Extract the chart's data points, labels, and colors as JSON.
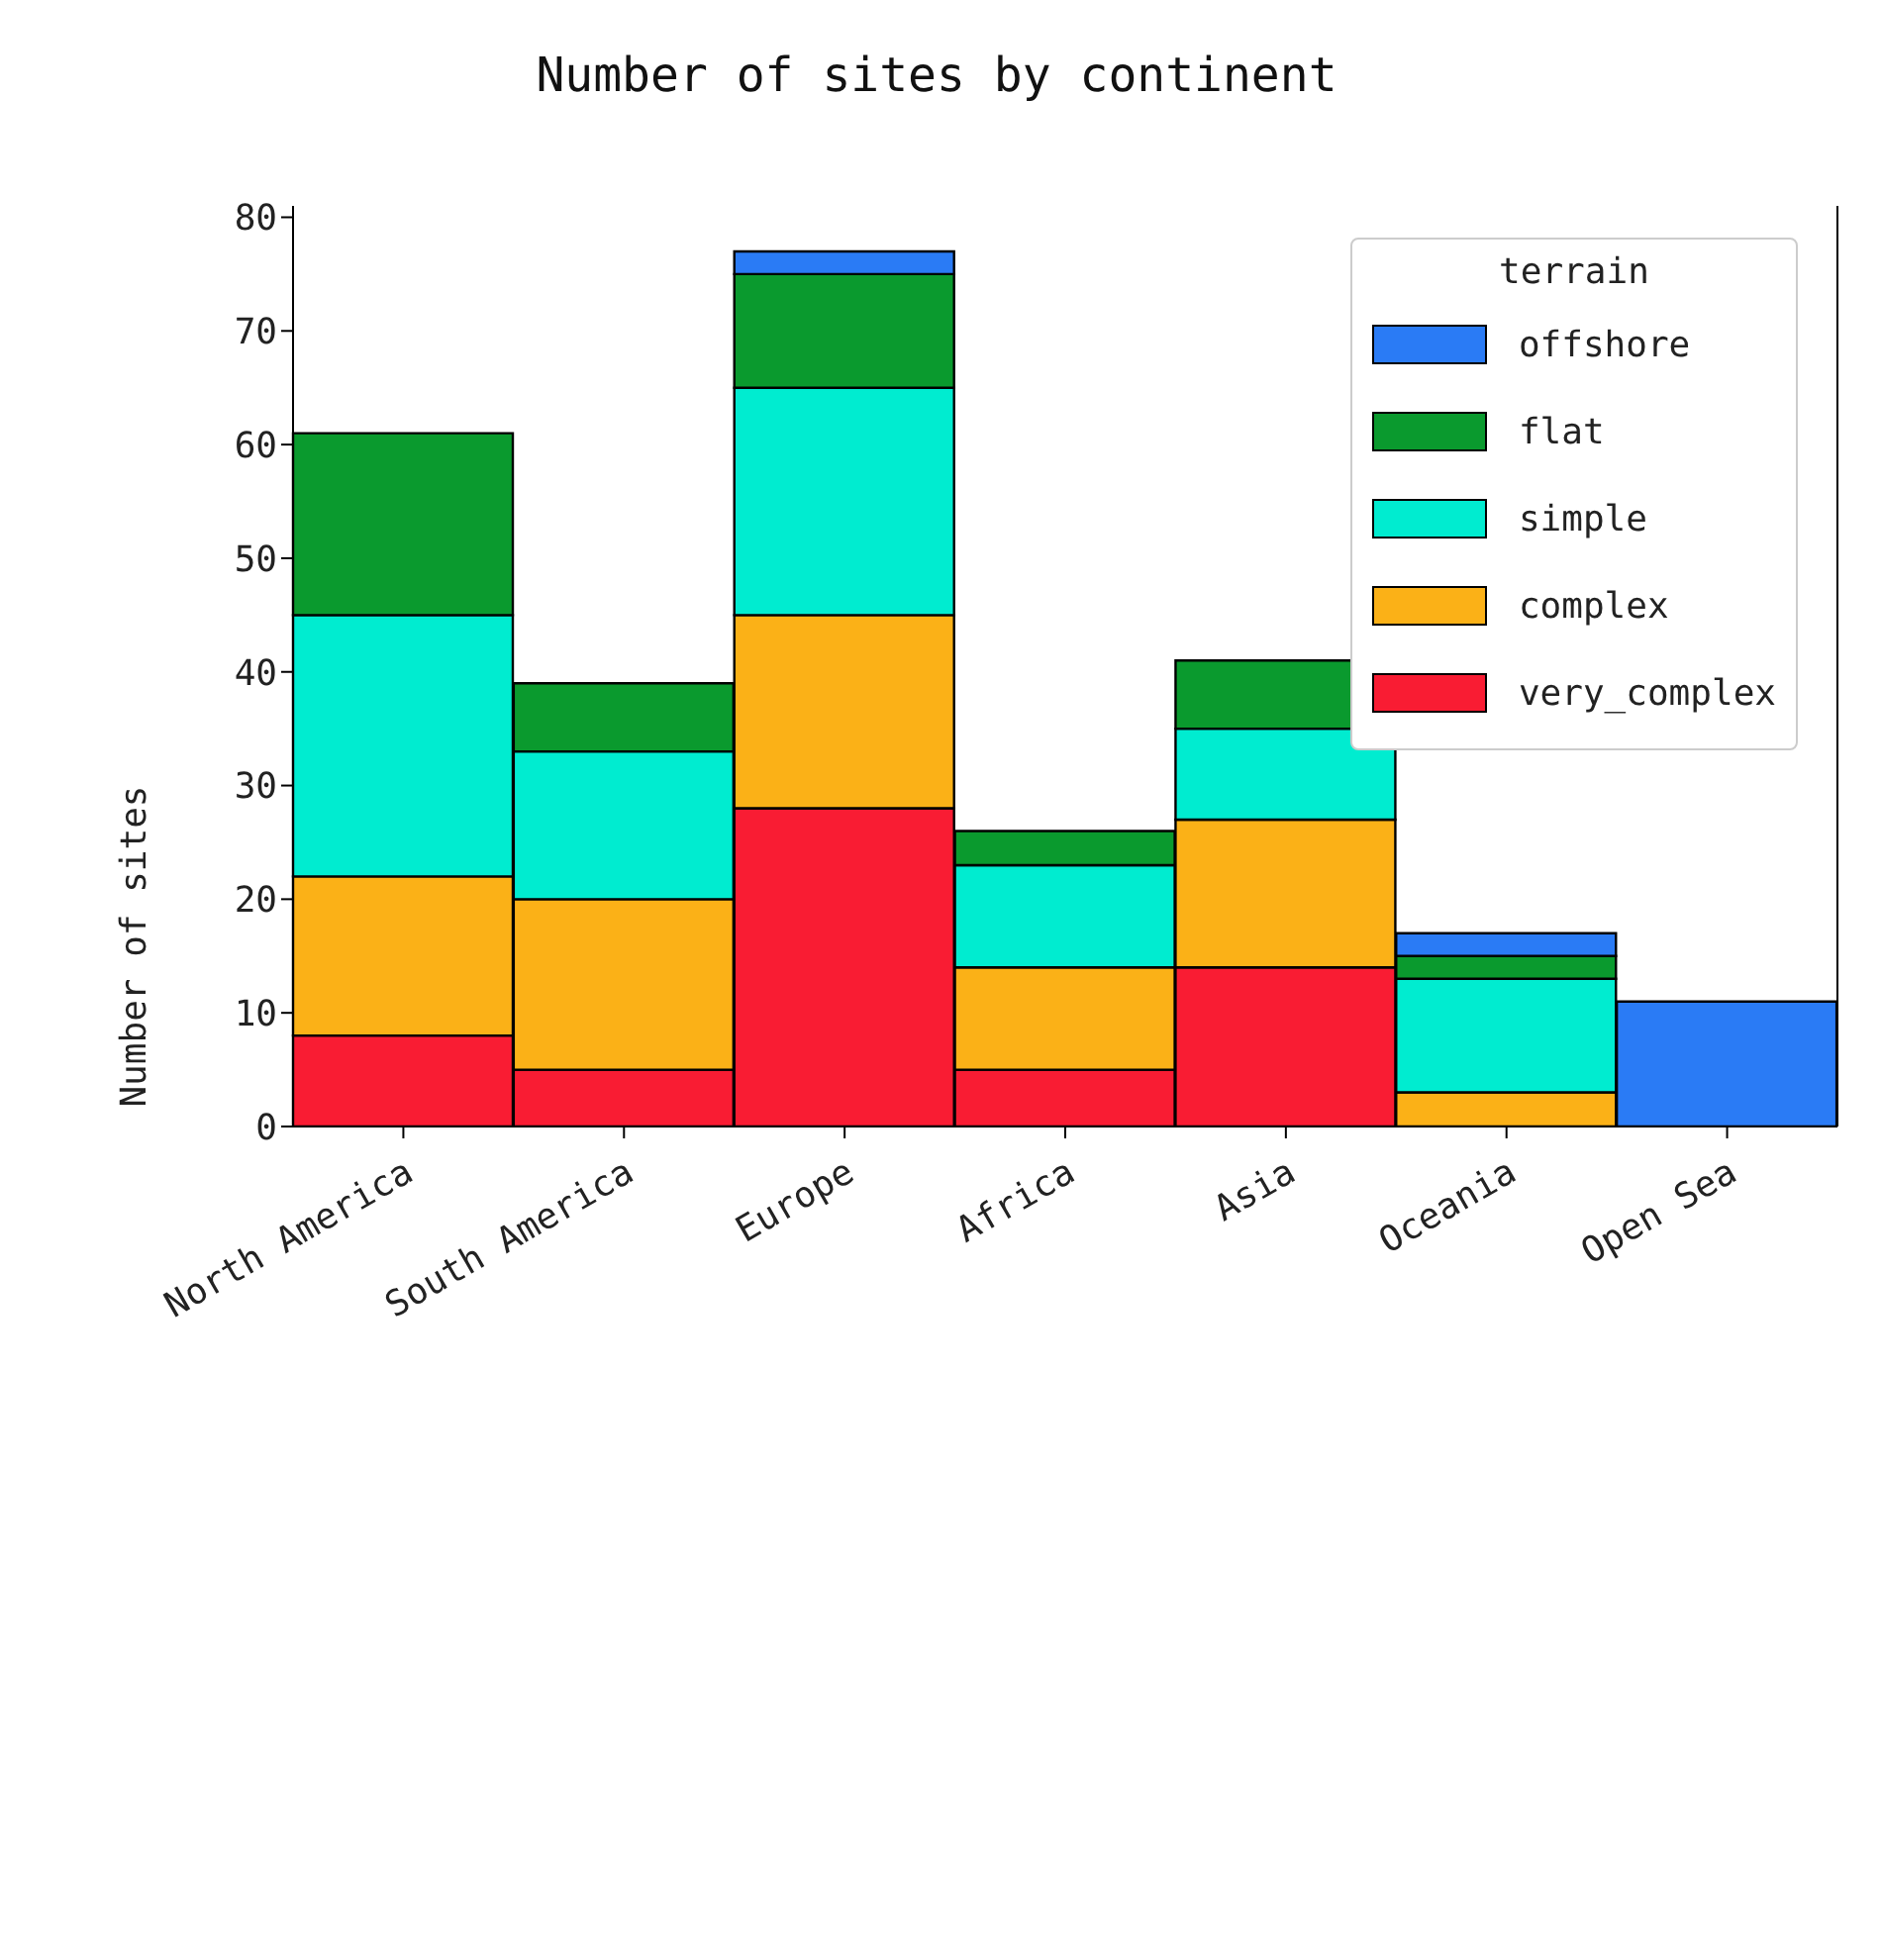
{
  "chart_data": {
    "type": "bar",
    "title": "Number of sites by continent",
    "ylabel": "Number of sites",
    "legend_title": "terrain",
    "categories": [
      "North America",
      "South America",
      "Europe",
      "Africa",
      "Asia",
      "Oceania",
      "Open Sea"
    ],
    "stacked": true,
    "ylim": [
      0,
      81
    ],
    "yticks": [
      0,
      10,
      20,
      30,
      40,
      50,
      60,
      70,
      80
    ],
    "legend": "top right",
    "grid": false,
    "series": [
      {
        "name": "very_complex",
        "color": "#f91c33",
        "values": [
          8,
          5,
          28,
          5,
          14,
          0,
          0
        ]
      },
      {
        "name": "complex",
        "color": "#fbb117",
        "values": [
          14,
          15,
          17,
          9,
          13,
          3,
          0
        ]
      },
      {
        "name": "simple",
        "color": "#00ecd0",
        "values": [
          23,
          13,
          20,
          9,
          8,
          10,
          0
        ]
      },
      {
        "name": "flat",
        "color": "#0a9a2e",
        "values": [
          16,
          6,
          10,
          3,
          6,
          2,
          0
        ]
      },
      {
        "name": "offshore",
        "color": "#2a7bf5",
        "values": [
          0,
          0,
          2,
          0,
          0,
          2,
          11
        ]
      }
    ]
  }
}
